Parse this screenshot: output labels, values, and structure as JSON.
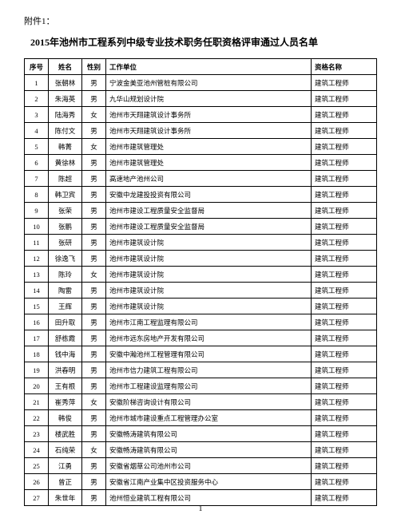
{
  "attachment_label": "附件1：",
  "title": "2015年池州市工程系列中级专业技术职务任职资格评审通过人员名单",
  "page_number": "1",
  "columns": [
    "序号",
    "姓名",
    "性别",
    "工作单位",
    "资格名称"
  ],
  "rows": [
    [
      "1",
      "张朝林",
      "男",
      "宁波金美亚池州管桩有限公司",
      "建筑工程师"
    ],
    [
      "2",
      "朱海英",
      "男",
      "九华山规划设计院",
      "建筑工程师"
    ],
    [
      "3",
      "陆海秀",
      "女",
      "池州市天翔建筑设计事务所",
      "建筑工程师"
    ],
    [
      "4",
      "陈付文",
      "男",
      "池州市天翔建筑设计事务所",
      "建筑工程师"
    ],
    [
      "5",
      "韩菁",
      "女",
      "池州市建筑管理处",
      "建筑工程师"
    ],
    [
      "6",
      "黄徐林",
      "男",
      "池州市建筑管理处",
      "建筑工程师"
    ],
    [
      "7",
      "陈超",
      "男",
      "高速地产池州公司",
      "建筑工程师"
    ],
    [
      "8",
      "韩卫宾",
      "男",
      "安徽中龙建投投资有限公司",
      "建筑工程师"
    ],
    [
      "9",
      "张荣",
      "男",
      "池州市建设工程质量安全监督局",
      "建筑工程师"
    ],
    [
      "10",
      "张鹏",
      "男",
      "池州市建设工程质量安全监督局",
      "建筑工程师"
    ],
    [
      "11",
      "张研",
      "男",
      "池州市建筑设计院",
      "建筑工程师"
    ],
    [
      "12",
      "徐逸飞",
      "男",
      "池州市建筑设计院",
      "建筑工程师"
    ],
    [
      "13",
      "陈玲",
      "女",
      "池州市建筑设计院",
      "建筑工程师"
    ],
    [
      "14",
      "陶雷",
      "男",
      "池州市建筑设计院",
      "建筑工程师"
    ],
    [
      "15",
      "王辉",
      "男",
      "池州市建筑设计院",
      "建筑工程师"
    ],
    [
      "16",
      "田升取",
      "男",
      "池州市江南工程监理有限公司",
      "建筑工程师"
    ],
    [
      "17",
      "舒栋霞",
      "男",
      "池州市远东房地产开发有限公司",
      "建筑工程师"
    ],
    [
      "18",
      "钱中海",
      "男",
      "安徽中瀚池州工程管理有限公司",
      "建筑工程师"
    ],
    [
      "19",
      "洪春明",
      "男",
      "池州市信力建筑工程有限公司",
      "建筑工程师"
    ],
    [
      "20",
      "王有根",
      "男",
      "池州市工程建设监理有限公司",
      "建筑工程师"
    ],
    [
      "21",
      "崔秀萍",
      "女",
      "安徽阶梯咨询设计有限公司",
      "建筑工程师"
    ],
    [
      "22",
      "韩俊",
      "男",
      "池州市城市建设重点工程管理办公室",
      "建筑工程师"
    ],
    [
      "23",
      "楼武胜",
      "男",
      "安徽畅涛建筑有限公司",
      "建筑工程师"
    ],
    [
      "24",
      "石纯荣",
      "女",
      "安徽畅涛建筑有限公司",
      "建筑工程师"
    ],
    [
      "25",
      "江勇",
      "男",
      "安徽省烟草公司池州市公司",
      "建筑工程师"
    ],
    [
      "26",
      "曾正",
      "男",
      "安徽省江南产业集中区投资服务中心",
      "建筑工程师"
    ],
    [
      "27",
      "朱世年",
      "男",
      "池州恒业建筑工程有限公司",
      "建筑工程师"
    ]
  ]
}
